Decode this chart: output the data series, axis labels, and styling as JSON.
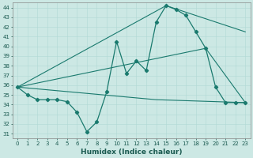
{
  "xlabel": "Humidex (Indice chaleur)",
  "bg_color": "#cce8e4",
  "line_color": "#1a7a6e",
  "ylim": [
    30.5,
    44.5
  ],
  "xlim": [
    -0.5,
    23.5
  ],
  "yticks": [
    31,
    32,
    33,
    34,
    35,
    36,
    37,
    38,
    39,
    40,
    41,
    42,
    43,
    44
  ],
  "xticks": [
    0,
    1,
    2,
    3,
    4,
    5,
    6,
    7,
    8,
    9,
    10,
    11,
    12,
    13,
    14,
    15,
    16,
    17,
    18,
    19,
    20,
    21,
    22,
    23
  ],
  "main_curve": {
    "x": [
      0,
      1,
      2,
      3,
      4,
      5,
      6,
      7,
      8,
      9,
      10,
      11,
      12,
      13,
      14,
      15,
      16,
      17,
      18,
      19,
      20,
      21,
      22,
      23
    ],
    "y": [
      35.8,
      35.0,
      34.5,
      34.5,
      34.5,
      34.3,
      33.2,
      31.2,
      32.2,
      35.3,
      40.5,
      37.2,
      38.5,
      37.5,
      42.5,
      44.2,
      43.8,
      43.2,
      41.5,
      39.8,
      35.8,
      34.2,
      34.2,
      34.2
    ]
  },
  "straight_lines": [
    {
      "x": [
        0,
        14,
        23
      ],
      "y": [
        35.8,
        34.5,
        34.2
      ]
    },
    {
      "x": [
        0,
        19,
        23
      ],
      "y": [
        35.8,
        39.8,
        34.2
      ]
    },
    {
      "x": [
        0,
        15,
        23
      ],
      "y": [
        35.8,
        44.2,
        41.5
      ]
    }
  ]
}
